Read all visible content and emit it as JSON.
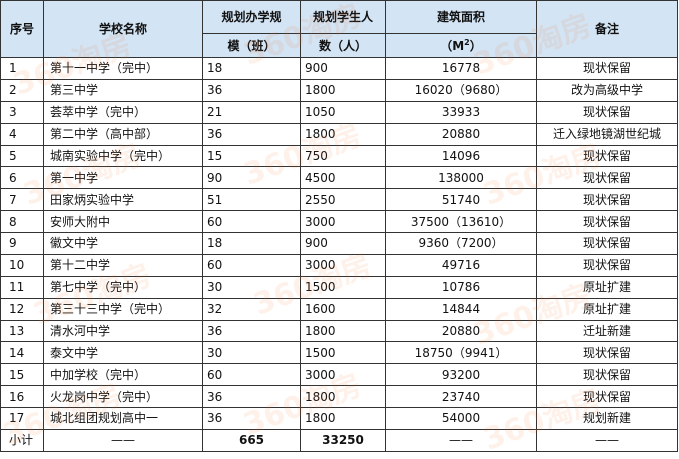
{
  "header": {
    "col_no": "序号",
    "col_name": "学校名称",
    "col_capacity_l1": "规划办学规",
    "col_capacity_l2": "模（班）",
    "col_students_l1": "规划学生人",
    "col_students_l2": "数（人）",
    "col_area_l1": "建筑面积",
    "col_area_l2": "（M",
    "col_area_sup": "2",
    "col_area_l2_end": "）",
    "col_note": "备注"
  },
  "rows": [
    {
      "no": "1",
      "name": "第十一中学（完中）",
      "capacity": "18",
      "students": "900",
      "area": "16778",
      "note": "现状保留"
    },
    {
      "no": "2",
      "name": "第三中学",
      "capacity": "36",
      "students": "1800",
      "area": "16020（9680）",
      "note": "改为高级中学"
    },
    {
      "no": "3",
      "name": "荟萃中学（完中）",
      "capacity": "21",
      "students": "1050",
      "area": "33933",
      "note": "现状保留"
    },
    {
      "no": "4",
      "name": "第二中学（高中部）",
      "capacity": "36",
      "students": "1800",
      "area": "20880",
      "note": "迁入绿地镜湖世纪城"
    },
    {
      "no": "5",
      "name": "城南实验中学（完中）",
      "capacity": "15",
      "students": "750",
      "area": "14096",
      "note": "现状保留"
    },
    {
      "no": "6",
      "name": "第一中学",
      "capacity": "90",
      "students": "4500",
      "area": "138000",
      "note": "现状保留"
    },
    {
      "no": "7",
      "name": "田家炳实验中学",
      "capacity": "51",
      "students": "2550",
      "area": "51740",
      "note": "现状保留"
    },
    {
      "no": "8",
      "name": "安师大附中",
      "capacity": "60",
      "students": "3000",
      "area": "37500（13610）",
      "note": "现状保留"
    },
    {
      "no": "9",
      "name": "徽文中学",
      "capacity": "18",
      "students": "900",
      "area": "9360（7200）",
      "note": "现状保留"
    },
    {
      "no": "10",
      "name": "第十二中学",
      "capacity": "60",
      "students": "3000",
      "area": "49716",
      "note": "现状保留"
    },
    {
      "no": "11",
      "name": "第七中学（完中）",
      "capacity": "30",
      "students": "1500",
      "area": "10786",
      "note": "原址扩建"
    },
    {
      "no": "12",
      "name": "第三十三中学（完中）",
      "capacity": "32",
      "students": "1600",
      "area": "14844",
      "note": "原址扩建"
    },
    {
      "no": "13",
      "name": "清水河中学",
      "capacity": "36",
      "students": "1800",
      "area": "20880",
      "note": "迁址新建"
    },
    {
      "no": "14",
      "name": "泰文中学",
      "capacity": "30",
      "students": "1500",
      "area": "18750（9941）",
      "note": "现状保留"
    },
    {
      "no": "15",
      "name": "中加学校（完中）",
      "capacity": "60",
      "students": "3000",
      "area": "93200",
      "note": "现状保留"
    },
    {
      "no": "16",
      "name": "火龙岗中学（完中）",
      "capacity": "36",
      "students": "1800",
      "area": "23740",
      "note": "现状保留"
    },
    {
      "no": "17",
      "name": "城北组团规划高中一",
      "capacity": "36",
      "students": "1800",
      "area": "54000",
      "note": "规划新建"
    }
  ],
  "subtotal": {
    "label": "小计",
    "name": "——",
    "capacity": "665",
    "students": "33250",
    "area": "——",
    "note": "——"
  },
  "watermark": "360淘房",
  "colors": {
    "header_bg": "#d3e4f4",
    "watermark": "#f57828"
  }
}
